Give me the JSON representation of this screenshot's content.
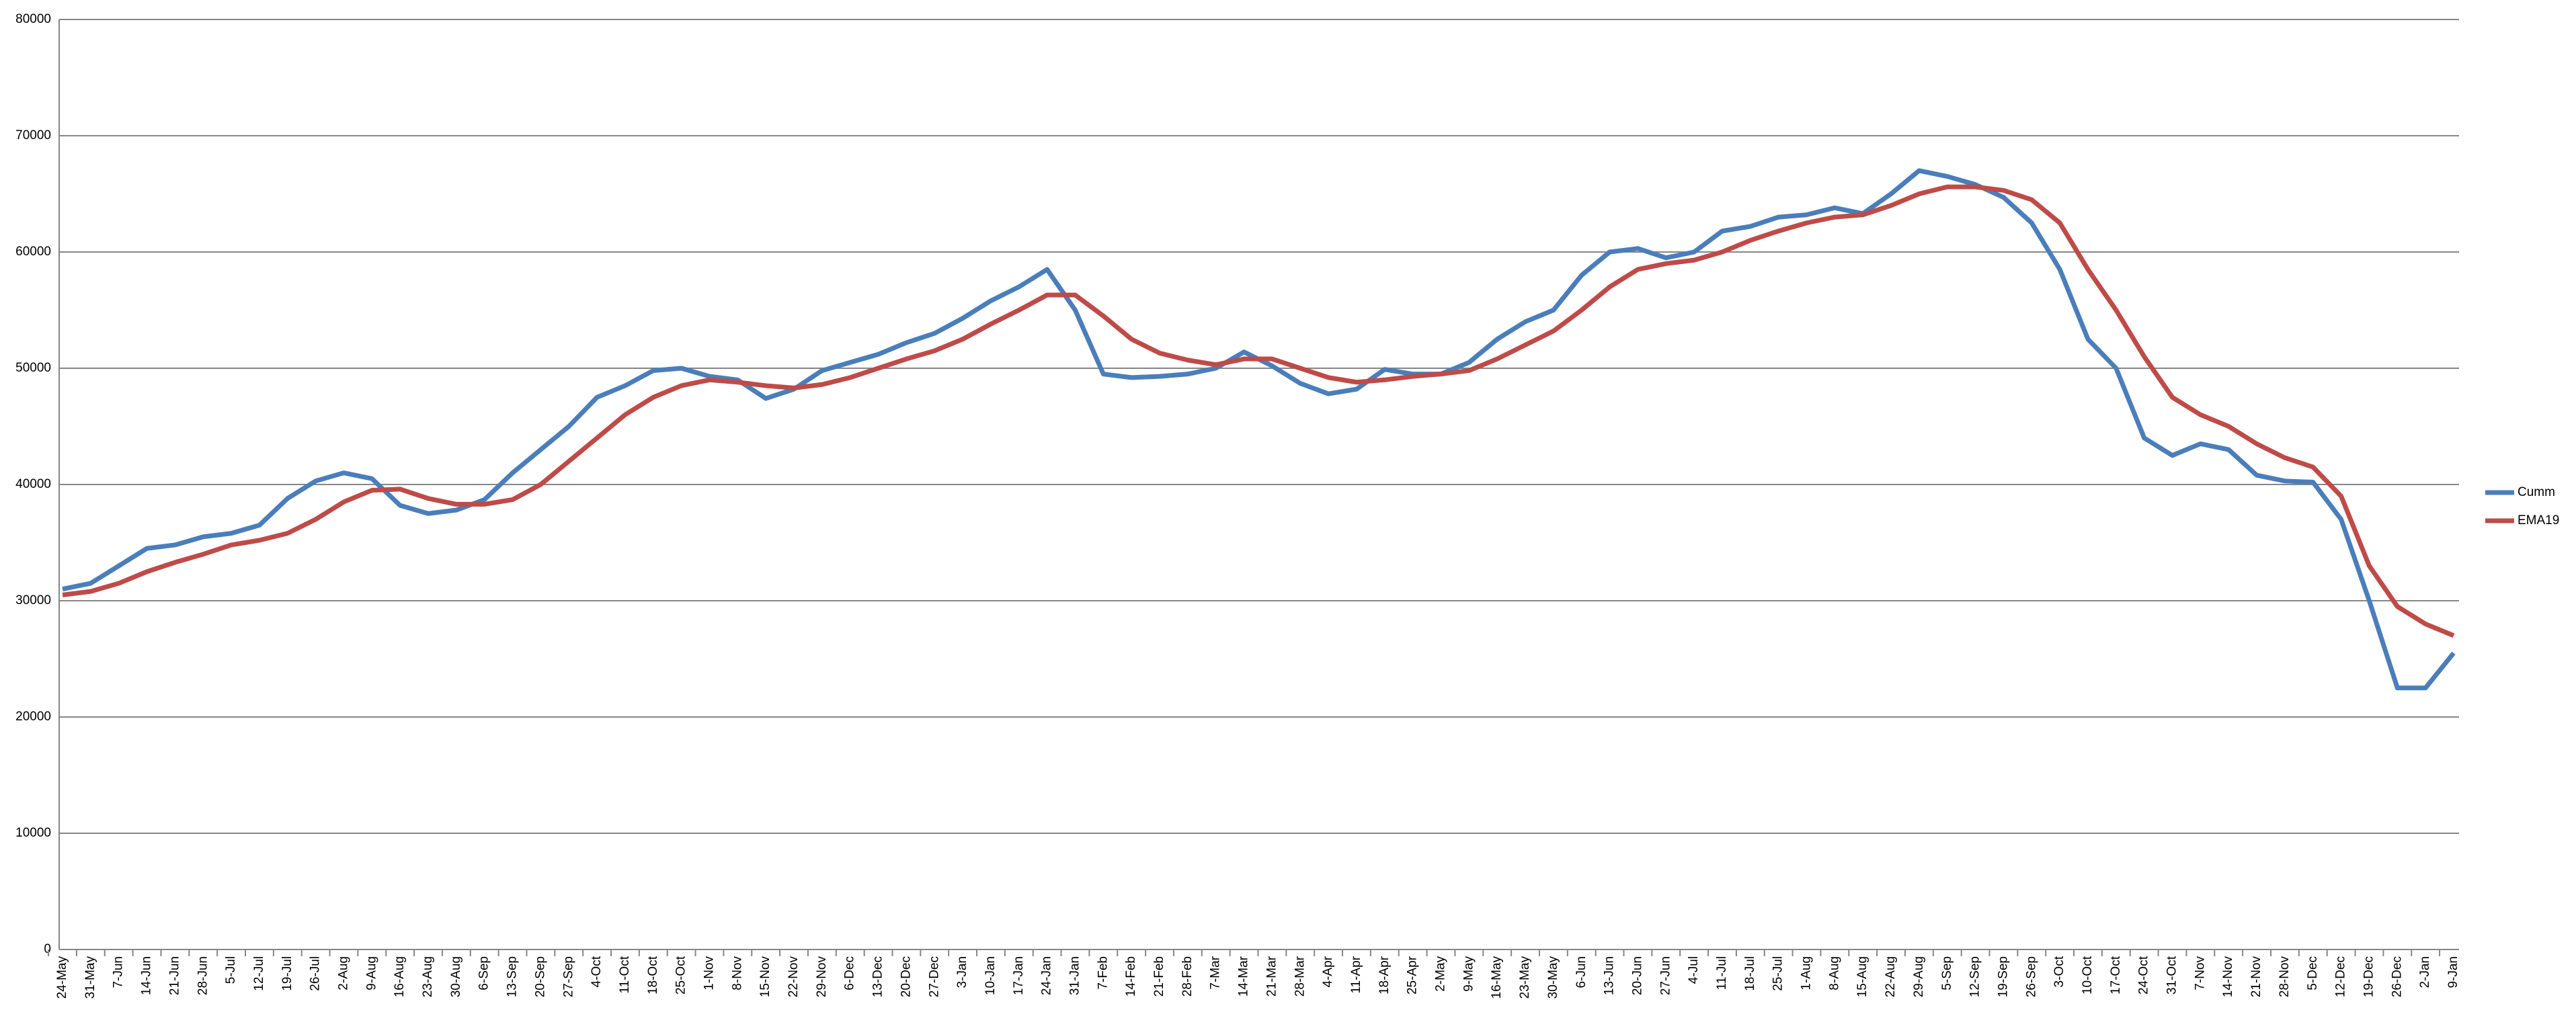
{
  "chart_data": {
    "type": "line",
    "categories": [
      "24-May",
      "31-May",
      "7-Jun",
      "14-Jun",
      "21-Jun",
      "28-Jun",
      "5-Jul",
      "12-Jul",
      "19-Jul",
      "26-Jul",
      "2-Aug",
      "9-Aug",
      "16-Aug",
      "23-Aug",
      "30-Aug",
      "6-Sep",
      "13-Sep",
      "20-Sep",
      "27-Sep",
      "4-Oct",
      "11-Oct",
      "18-Oct",
      "25-Oct",
      "1-Nov",
      "8-Nov",
      "15-Nov",
      "22-Nov",
      "29-Nov",
      "6-Dec",
      "13-Dec",
      "20-Dec",
      "27-Dec",
      "3-Jan",
      "10-Jan",
      "17-Jan",
      "24-Jan",
      "31-Jan",
      "7-Feb",
      "14-Feb",
      "21-Feb",
      "28-Feb",
      "7-Mar",
      "14-Mar",
      "21-Mar",
      "28-Mar",
      "4-Apr",
      "11-Apr",
      "18-Apr",
      "25-Apr",
      "2-May",
      "9-May",
      "16-May",
      "23-May",
      "30-May",
      "6-Jun",
      "13-Jun",
      "20-Jun",
      "27-Jun",
      "4-Jul",
      "11-Jul",
      "18-Jul",
      "25-Jul",
      "1-Aug",
      "8-Aug",
      "15-Aug",
      "22-Aug",
      "29-Aug",
      "5-Sep",
      "12-Sep",
      "19-Sep",
      "26-Sep",
      "3-Oct",
      "10-Oct",
      "17-Oct",
      "24-Oct",
      "31-Oct",
      "7-Nov",
      "14-Nov",
      "21-Nov",
      "28-Nov",
      "5-Dec",
      "12-Dec",
      "19-Dec",
      "26-Dec",
      "2-Jan",
      "9-Jan"
    ],
    "series": [
      {
        "name": "Cumm",
        "color": "#4a7ebb",
        "values": [
          31000,
          31500,
          33000,
          34500,
          34800,
          35500,
          35800,
          36500,
          38800,
          40300,
          41000,
          40500,
          38200,
          37500,
          37800,
          38700,
          41000,
          43000,
          45000,
          47500,
          48500,
          49800,
          50000,
          49300,
          49000,
          47400,
          48200,
          49800,
          50500,
          51200,
          52200,
          53000,
          54300,
          55800,
          57000,
          58500,
          55000,
          49500,
          49200,
          49300,
          49500,
          50000,
          51400,
          50200,
          48700,
          47800,
          48200,
          49900,
          49500,
          49500,
          50500,
          52500,
          54000,
          55000,
          58000,
          60000,
          60300,
          59500,
          60000,
          61800,
          62200,
          63000,
          63200,
          63800,
          63300,
          65000,
          67000,
          66500,
          65800,
          64700,
          62500,
          58500,
          52500,
          50000,
          44000,
          42500,
          43500,
          43000,
          40800,
          40300,
          40200,
          37000,
          30000,
          22500,
          22500,
          25500
        ]
      },
      {
        "name": "EMA19",
        "color": "#be4b48",
        "values": [
          30500,
          30800,
          31500,
          32500,
          33300,
          34000,
          34800,
          35200,
          35800,
          37000,
          38500,
          39500,
          39600,
          38800,
          38300,
          38300,
          38700,
          40000,
          42000,
          44000,
          46000,
          47500,
          48500,
          49000,
          48800,
          48500,
          48300,
          48600,
          49200,
          50000,
          50800,
          51500,
          52500,
          53800,
          55000,
          56300,
          56300,
          54500,
          52500,
          51300,
          50700,
          50300,
          50800,
          50800,
          50000,
          49200,
          48800,
          49000,
          49300,
          49500,
          49800,
          50800,
          52000,
          53200,
          55000,
          57000,
          58500,
          59000,
          59300,
          60000,
          61000,
          61800,
          62500,
          63000,
          63200,
          64000,
          65000,
          65600,
          65600,
          65300,
          64500,
          62500,
          58500,
          55000,
          51000,
          47500,
          46000,
          45000,
          43500,
          42300,
          41500,
          39000,
          33000,
          29500,
          28000,
          27000
        ]
      }
    ],
    "ylim": [
      0,
      80000
    ],
    "yticks": [
      0,
      10000,
      20000,
      30000,
      40000,
      50000,
      60000,
      70000,
      80000
    ],
    "grid": true,
    "legend": "right"
  }
}
